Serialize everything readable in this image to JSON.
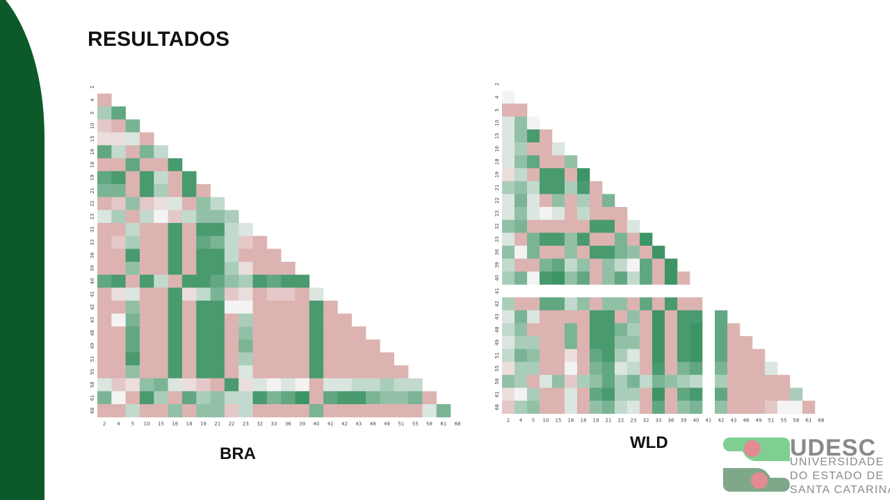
{
  "page": {
    "title": "RESULTADOS",
    "accent_color": "#0c5a2a"
  },
  "color_scale": {
    "positive": "#3d9464",
    "neutral": "#f3f3f3",
    "negative": "#dcb3b1"
  },
  "chart_data": [
    {
      "type": "heatmap",
      "label": "BRA",
      "categories": [
        "2",
        "4",
        "5",
        "10",
        "15",
        "16",
        "18",
        "19",
        "21",
        "22",
        "23",
        "32",
        "33",
        "36",
        "39",
        "40",
        "41",
        "42",
        "43",
        "48",
        "49",
        "51",
        "55",
        "58",
        "61",
        "68"
      ],
      "lower_triangle_values": [
        [],
        [
          -0.3
        ],
        [
          0.3,
          0.6
        ],
        [
          -0.2,
          -0.3,
          0.5
        ],
        [
          -0.1,
          -0.1,
          0.1,
          -0.4
        ],
        [
          0.6,
          0.2,
          -0.3,
          0.5,
          0.2
        ],
        [
          -0.3,
          -0.3,
          0.6,
          -0.4,
          -0.3,
          0.7
        ],
        [
          0.6,
          0.7,
          -0.3,
          0.7,
          0.2,
          -0.4,
          0.7
        ],
        [
          0.5,
          0.5,
          -0.3,
          0.7,
          0.3,
          -0.4,
          0.7,
          -0.3
        ],
        [
          -0.3,
          -0.2,
          0.4,
          -0.2,
          -0.1,
          0.1,
          -0.3,
          0.4,
          0.2
        ],
        [
          0.1,
          0.3,
          -0.3,
          0.2,
          0.0,
          -0.2,
          0.2,
          0.4,
          0.4,
          0.3
        ],
        [
          -0.3,
          -0.3,
          0.2,
          -0.3,
          -0.3,
          0.7,
          -0.3,
          0.7,
          0.7,
          0.2,
          0.1
        ],
        [
          -0.3,
          -0.2,
          0.3,
          -0.3,
          -0.3,
          0.7,
          -0.3,
          0.6,
          0.5,
          0.2,
          -0.2,
          -0.4
        ],
        [
          -0.3,
          -0.3,
          0.7,
          -0.3,
          -0.3,
          0.7,
          -0.3,
          0.7,
          0.7,
          0.2,
          -0.4,
          -0.4,
          -0.3
        ],
        [
          -0.3,
          -0.3,
          0.4,
          -0.3,
          -0.3,
          0.7,
          -0.3,
          0.7,
          0.7,
          0.3,
          -0.1,
          -0.4,
          -0.3,
          -0.4
        ],
        [
          0.6,
          0.7,
          -0.3,
          0.7,
          0.2,
          -0.4,
          0.7,
          0.7,
          0.6,
          0.4,
          0.3,
          0.7,
          0.6,
          0.7,
          0.7
        ],
        [
          -0.3,
          -0.1,
          0.1,
          -0.3,
          -0.3,
          0.7,
          -0.1,
          0.2,
          0.5,
          -0.2,
          -0.1,
          -0.3,
          -0.2,
          -0.2,
          -0.3,
          0.1
        ],
        [
          -0.3,
          -0.3,
          0.4,
          -0.3,
          -0.3,
          0.7,
          -0.3,
          0.7,
          0.7,
          0.0,
          0.0,
          -0.4,
          -0.3,
          -0.4,
          -0.4,
          0.7,
          -0.4
        ],
        [
          -0.3,
          0.0,
          0.5,
          -0.3,
          -0.3,
          0.7,
          -0.3,
          0.7,
          0.7,
          -0.3,
          0.3,
          -0.4,
          -0.4,
          -0.4,
          -0.4,
          0.7,
          -0.4,
          -0.4
        ],
        [
          -0.3,
          -0.3,
          0.6,
          -0.3,
          -0.3,
          0.7,
          -0.3,
          0.7,
          0.7,
          -0.3,
          0.4,
          -0.4,
          -0.4,
          -0.4,
          -0.4,
          0.7,
          -0.4,
          -0.4,
          -0.4
        ],
        [
          -0.3,
          -0.3,
          0.6,
          -0.3,
          -0.3,
          0.7,
          -0.3,
          0.7,
          0.7,
          -0.3,
          0.5,
          -0.4,
          -0.4,
          -0.4,
          -0.4,
          0.7,
          -0.4,
          -0.4,
          -0.4,
          -0.4
        ],
        [
          -0.3,
          -0.3,
          0.7,
          -0.3,
          -0.3,
          0.7,
          -0.3,
          0.7,
          0.7,
          -0.3,
          0.3,
          -0.4,
          -0.4,
          -0.4,
          -0.4,
          0.7,
          -0.4,
          -0.4,
          -0.4,
          -0.4,
          -0.4
        ],
        [
          -0.3,
          -0.3,
          0.4,
          -0.3,
          -0.3,
          0.7,
          -0.3,
          0.7,
          0.7,
          -0.3,
          0.1,
          -0.4,
          -0.4,
          -0.4,
          -0.4,
          0.7,
          -0.4,
          -0.4,
          -0.4,
          -0.4,
          -0.4,
          -0.4
        ],
        [
          0.1,
          -0.2,
          -0.1,
          0.4,
          0.5,
          0.1,
          -0.1,
          -0.2,
          -0.3,
          0.7,
          -0.1,
          0.1,
          0.0,
          0.1,
          0.0,
          -0.3,
          0.1,
          0.1,
          0.2,
          0.2,
          0.3,
          0.2,
          0.2
        ],
        [
          0.5,
          0.0,
          -0.3,
          0.7,
          0.3,
          -0.4,
          0.6,
          0.3,
          0.4,
          0.2,
          0.2,
          0.7,
          0.5,
          0.6,
          0.8,
          -0.3,
          0.6,
          0.7,
          0.7,
          0.5,
          0.4,
          0.4,
          0.5,
          -0.4
        ],
        [
          -0.3,
          -0.3,
          0.2,
          -0.3,
          -0.3,
          0.4,
          -0.3,
          0.4,
          0.4,
          -0.2,
          0.2,
          -0.3,
          -0.3,
          -0.3,
          -0.3,
          0.5,
          -0.3,
          -0.3,
          -0.3,
          -0.3,
          -0.3,
          -0.3,
          -0.3,
          0.1,
          0.5
        ]
      ],
      "range": [
        -1,
        1
      ]
    },
    {
      "type": "heatmap",
      "label": "WLD",
      "categories": [
        "2",
        "4",
        "5",
        "10",
        "15",
        "16",
        "18",
        "19",
        "21",
        "22",
        "23",
        "32",
        "33",
        "36",
        "39",
        "40",
        "41",
        "42",
        "43",
        "48",
        "49",
        "51",
        "55",
        "58",
        "61",
        "68"
      ],
      "lower_triangle_values": [
        [],
        [
          0.0
        ],
        [
          -0.3,
          -0.3
        ],
        [
          0.1,
          0.4,
          0.0
        ],
        [
          0.1,
          0.4,
          0.7,
          -0.3
        ],
        [
          0.1,
          0.3,
          -0.3,
          -0.3,
          0.1
        ],
        [
          0.1,
          0.4,
          0.6,
          -0.3,
          -0.3,
          0.4
        ],
        [
          -0.1,
          0.2,
          -0.3,
          0.7,
          0.7,
          -0.3,
          0.8
        ],
        [
          0.3,
          0.4,
          0.2,
          0.7,
          0.7,
          0.3,
          0.7,
          -0.3
        ],
        [
          0.1,
          0.5,
          0.1,
          -0.3,
          0.4,
          -0.3,
          0.3,
          -0.3,
          0.5
        ],
        [
          0.1,
          0.4,
          0.1,
          0.0,
          0.1,
          -0.3,
          0.2,
          -0.3,
          -0.3,
          -0.3
        ],
        [
          0.4,
          0.5,
          -0.3,
          -0.3,
          -0.3,
          -0.3,
          -0.3,
          0.7,
          0.7,
          -0.3,
          0.1
        ],
        [
          0.1,
          -0.3,
          0.5,
          0.7,
          0.7,
          0.4,
          0.7,
          -0.3,
          -0.3,
          0.5,
          -0.3,
          0.8
        ],
        [
          0.4,
          0.0,
          0.5,
          -0.3,
          -0.3,
          0.4,
          -0.3,
          0.7,
          0.7,
          0.5,
          0.4,
          -0.3,
          0.8
        ],
        [
          0.2,
          -0.3,
          -0.3,
          0.5,
          0.6,
          0.2,
          0.4,
          -0.3,
          0.4,
          0.2,
          0.0,
          0.6,
          -0.3,
          0.8
        ],
        [
          0.3,
          0.5,
          0.0,
          0.7,
          0.8,
          0.4,
          0.6,
          -0.3,
          0.4,
          0.6,
          0.2,
          0.6,
          -0.3,
          0.8,
          -0.3
        ],
        [],
        [
          0.3,
          -0.3,
          -0.3,
          0.6,
          0.6,
          0.2,
          0.4,
          -0.3,
          0.4,
          0.4,
          -0.3,
          0.6,
          -0.3,
          0.7,
          -0.3,
          -0.3,
          null
        ],
        [
          0.1,
          0.5,
          0.1,
          -0.3,
          -0.3,
          -0.3,
          -0.3,
          0.7,
          0.7,
          -0.3,
          0.4,
          -0.3,
          0.8,
          -0.3,
          0.7,
          0.7,
          null,
          0.6
        ],
        [
          0.2,
          0.4,
          -0.3,
          -0.3,
          -0.3,
          0.5,
          -0.3,
          0.7,
          0.7,
          0.5,
          0.3,
          -0.3,
          0.8,
          -0.3,
          0.7,
          0.8,
          null,
          0.6,
          -0.3
        ],
        [
          0.1,
          0.3,
          0.3,
          -0.3,
          -0.3,
          0.5,
          -0.3,
          0.7,
          0.7,
          0.4,
          0.4,
          -0.3,
          0.8,
          -0.3,
          0.7,
          0.8,
          null,
          0.6,
          -0.3,
          -0.3
        ],
        [
          0.2,
          0.5,
          0.4,
          -0.3,
          -0.3,
          -0.1,
          -0.3,
          0.6,
          0.7,
          0.3,
          0.1,
          -0.3,
          0.8,
          -0.3,
          0.7,
          0.8,
          null,
          0.6,
          -0.3,
          -0.3,
          -0.3
        ],
        [
          -0.1,
          0.3,
          0.3,
          -0.3,
          -0.3,
          0.0,
          -0.3,
          0.5,
          0.6,
          0.1,
          0.2,
          -0.3,
          0.7,
          -0.3,
          0.5,
          0.6,
          null,
          0.5,
          -0.3,
          -0.3,
          -0.3,
          0.1
        ],
        [
          0.4,
          0.3,
          -0.3,
          0.1,
          0.4,
          -0.2,
          0.3,
          0.4,
          0.6,
          0.3,
          0.5,
          0.2,
          0.5,
          0.4,
          0.3,
          0.2,
          null,
          0.3,
          -0.3,
          -0.3,
          -0.3,
          -0.3,
          -0.3
        ],
        [
          -0.1,
          0.0,
          0.3,
          -0.3,
          -0.3,
          0.1,
          -0.3,
          0.6,
          0.7,
          0.3,
          0.3,
          -0.3,
          0.8,
          -0.3,
          0.6,
          0.7,
          null,
          0.6,
          -0.3,
          -0.3,
          -0.3,
          -0.3,
          -0.3,
          0.3
        ],
        [
          -0.2,
          0.3,
          0.4,
          -0.3,
          -0.3,
          0.1,
          -0.3,
          0.4,
          0.5,
          0.2,
          0.1,
          -0.3,
          0.6,
          -0.3,
          0.4,
          0.5,
          null,
          0.4,
          -0.3,
          -0.3,
          -0.3,
          -0.2,
          0.0,
          0.0,
          -0.3
        ]
      ],
      "range": [
        -1,
        1
      ]
    }
  ],
  "logo": {
    "name": "UDESC",
    "line1": "UNIVERSIDADE",
    "line2": "DO ESTADO DE",
    "line3": "SANTA CATARINA",
    "green_light": "#7fcf93",
    "green_dark": "#7fa88a",
    "pink": "#e48a93"
  }
}
